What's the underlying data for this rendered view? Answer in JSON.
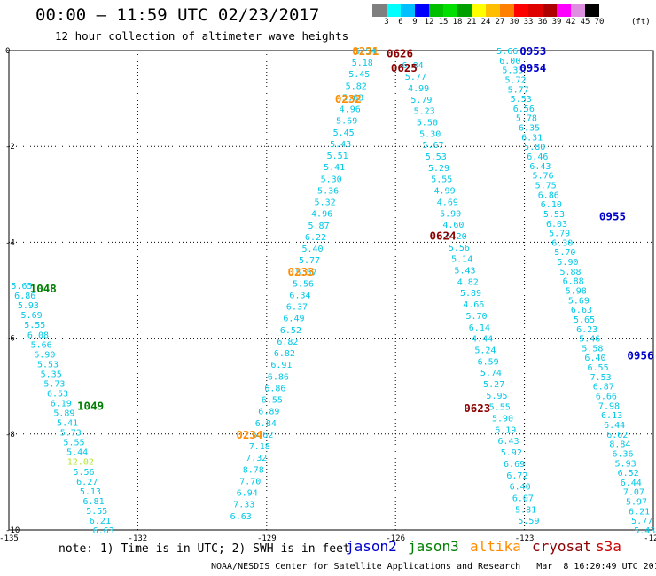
{
  "header": {
    "title": "00:00 – 11:59 UTC 02/23/2017",
    "subtitle": "12 hour collection of altimeter wave heights"
  },
  "colorbar": {
    "unit": "(ft)",
    "labels": [
      "3",
      "6",
      "9",
      "12",
      "15",
      "18",
      "21",
      "24",
      "27",
      "30",
      "33",
      "36",
      "39",
      "42",
      "45",
      "70"
    ],
    "colors": [
      "#7f7f7f",
      "#00ffff",
      "#00bfff",
      "#0000ff",
      "#00bf00",
      "#00df00",
      "#00a000",
      "#ffff00",
      "#ffbf00",
      "#ff8000",
      "#ff0000",
      "#df0000",
      "#af0000",
      "#ff00ff",
      "#df8fdf",
      "#000000"
    ]
  },
  "axes": {
    "x_ticks": [
      "-135",
      "-132",
      "-129",
      "-126",
      "-123",
      "-120"
    ],
    "y_ticks": [
      "0",
      "-2",
      "-4",
      "-6",
      "-8",
      "-10"
    ]
  },
  "series_colors": {
    "cyan": "#00c8e6",
    "yellowgreen": "#b4e632",
    "jason2": "#0000cc",
    "jason3": "#008000",
    "altika": "#ff8c00",
    "cryosat": "#8b0000",
    "s3a": "#cc0000"
  },
  "chart_data": {
    "type": "scatter",
    "xlim": [
      -135,
      -120
    ],
    "ylim": [
      -10,
      0
    ],
    "grid": true,
    "tracks": [
      {
        "x0": -134.7,
        "y0": -4.9,
        "x1": -132.8,
        "y1": -10.0,
        "color": "cyan",
        "values": [
          "5.65",
          "6.86",
          "5.93",
          "5.69",
          "5.55",
          "6.08",
          "5.66",
          "6.90",
          "5.53",
          "5.35",
          "5.73",
          "6.53",
          "6.19",
          "5.89",
          "5.41",
          "5.73",
          "5.55",
          "5.44",
          "12.02",
          "5.56",
          "6.27",
          "5.13",
          "6.81",
          "5.55",
          "6.21",
          "6.63"
        ],
        "highlight": {
          "index": 18,
          "color": "yellowgreen"
        }
      },
      {
        "x0": -126.7,
        "y0": 0.0,
        "x1": -129.6,
        "y1": -9.7,
        "color": "cyan",
        "values": [
          "5.54",
          "5.18",
          "5.45",
          "5.82",
          "5.63",
          "4.96",
          "5.69",
          "5.45",
          "5.43",
          "5.51",
          "5.41",
          "5.30",
          "5.36",
          "5.32",
          "4.96",
          "5.87",
          "6.22",
          "5.40",
          "5.77",
          "5.57",
          "5.56",
          "6.34",
          "6.37",
          "6.49",
          "6.52",
          "6.82",
          "6.82",
          "6.91",
          "6.86",
          "6.86",
          "6.55",
          "6.89",
          "6.84",
          "6.62",
          "7.18",
          "7.32",
          "8.78",
          "7.70",
          "6.94",
          "7.33",
          "6.63"
        ]
      },
      {
        "x0": -125.6,
        "y0": -0.3,
        "x1": -122.9,
        "y1": -9.8,
        "color": "cyan",
        "values": [
          "6.84",
          "5.77",
          "4.99",
          "5.79",
          "5.23",
          "5.50",
          "5.30",
          "5.67",
          "5.53",
          "5.29",
          "5.55",
          "4.99",
          "4.69",
          "5.90",
          "4.60",
          "6.20",
          "5.56",
          "5.14",
          "5.43",
          "4.82",
          "5.89",
          "4.66",
          "5.70",
          "6.14",
          "4.44",
          "5.24",
          "6.59",
          "5.74",
          "5.27",
          "5.95",
          "5.55",
          "5.90",
          "6.19",
          "6.43",
          "5.92",
          "6.69",
          "6.72",
          "6.40",
          "6.07",
          "5.81",
          "5.59"
        ]
      },
      {
        "x0": -123.4,
        "y0": 0.0,
        "x1": -120.2,
        "y1": -10.0,
        "color": "cyan",
        "values": [
          "5.66",
          "6.00",
          "5.35",
          "5.72",
          "5.77",
          "5.53",
          "6.56",
          "5.78",
          "6.35",
          "6.31",
          "5.80",
          "6.46",
          "6.43",
          "5.76",
          "5.75",
          "6.86",
          "6.10",
          "5.53",
          "6.03",
          "5.79",
          "6.30",
          "5.70",
          "5.90",
          "5.88",
          "6.88",
          "5.98",
          "5.69",
          "6.63",
          "5.65",
          "6.23",
          "5.46",
          "5.58",
          "6.40",
          "6.55",
          "7.53",
          "6.87",
          "6.66",
          "7.98",
          "6.13",
          "6.44",
          "6.62",
          "8.84",
          "6.36",
          "5.93",
          "6.52",
          "6.44",
          "7.07",
          "5.97",
          "6.21",
          "5.77",
          "5.43"
        ]
      }
    ],
    "time_labels": [
      {
        "text": "1048",
        "lon": -134.2,
        "lat": -4.95,
        "sat": "jason3"
      },
      {
        "text": "1049",
        "lon": -133.1,
        "lat": -7.4,
        "sat": "jason3"
      },
      {
        "text": "0231",
        "lon": -126.7,
        "lat": 0.0,
        "sat": "altika"
      },
      {
        "text": "0232",
        "lon": -127.1,
        "lat": -1.0,
        "sat": "altika"
      },
      {
        "text": "0233",
        "lon": -128.2,
        "lat": -4.6,
        "sat": "altika"
      },
      {
        "text": "0234",
        "lon": -129.4,
        "lat": -8.0,
        "sat": "altika"
      },
      {
        "text": "0626",
        "lon": -125.9,
        "lat": -0.05,
        "sat": "cryosat"
      },
      {
        "text": "0625",
        "lon": -125.8,
        "lat": -0.35,
        "sat": "cryosat"
      },
      {
        "text": "0624",
        "lon": -124.9,
        "lat": -3.85,
        "sat": "cryosat"
      },
      {
        "text": "0623",
        "lon": -124.1,
        "lat": -7.45,
        "sat": "cryosat"
      },
      {
        "text": "0953",
        "lon": -122.8,
        "lat": 0.0,
        "sat": "jason2"
      },
      {
        "text": "0954",
        "lon": -122.8,
        "lat": -0.35,
        "sat": "jason2"
      },
      {
        "text": "0955",
        "lon": -120.95,
        "lat": -3.45,
        "sat": "jason2"
      },
      {
        "text": "0956",
        "lon": -120.3,
        "lat": -6.35,
        "sat": "jason2"
      }
    ]
  },
  "note": "note: 1) Time is in UTC; 2) SWH is in feet",
  "legend": {
    "jason2": "jason2",
    "jason3": "jason3",
    "altika": "altika",
    "cryosat": "cryosat",
    "s3a": "s3a"
  },
  "footer": "NOAA/NESDIS Center for Satellite Applications and Research   Mar  8 16:20:49 UTC 2017"
}
